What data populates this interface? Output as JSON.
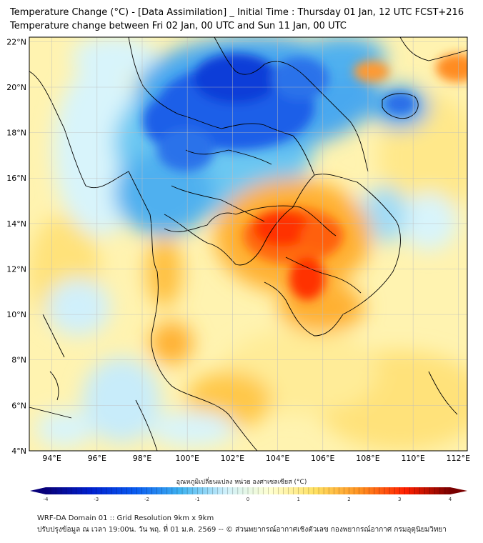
{
  "title_line1": "Temperature Change (°C) - [Data Assimilation] _ Initial Time : Thursday 01 Jan, 12 UTC FCST+216",
  "title_line2": "Temperature change between Fri 02 Jan, 00 UTC and Sun 11 Jan, 00 UTC",
  "map": {
    "lat_labels": [
      "22°N",
      "20°N",
      "18°N",
      "16°N",
      "14°N",
      "12°N",
      "10°N",
      "8°N",
      "6°N",
      "4°N"
    ],
    "lat_values": [
      22,
      20,
      18,
      16,
      14,
      12,
      10,
      8,
      6,
      4
    ],
    "lon_labels": [
      "94°E",
      "96°E",
      "98°E",
      "100°E",
      "102°E",
      "104°E",
      "106°E",
      "108°E",
      "110°E",
      "112°E"
    ],
    "lon_values": [
      94,
      96,
      98,
      100,
      102,
      104,
      106,
      108,
      110,
      112
    ],
    "lon_range": [
      93,
      112.4
    ],
    "lat_range": [
      4,
      22.2
    ],
    "grid": true
  },
  "colorbar": {
    "label": "อุณหภูมิเปลี่ยนแปลง หน่วย องศาเซลเซียส (°C)",
    "ticks": [
      "-4",
      "-3",
      "-2",
      "-1",
      "0",
      "1",
      "2",
      "3",
      "4"
    ],
    "min": -4,
    "max": 4,
    "colors": [
      "#08007a",
      "#0020d0",
      "#0a5cf0",
      "#3fb3f0",
      "#cff0fb",
      "#ffffd0",
      "#ffe060",
      "#ff9020",
      "#ff2000",
      "#7a0000"
    ]
  },
  "footer_line1": "WRF-DA Domain 01 :: Grid Resolution 9km x 9km",
  "footer_line2": "ปรับปรุงข้อมูล ณ เวลา 19:00น. วัน พฤ. ที่ 01 ม.ค. 2569 -- © ส่วนพยากรณ์อากาศเชิงตัวเลข กองพยากรณ์อากาศ กรมอุตุนิยมวิทยา"
}
